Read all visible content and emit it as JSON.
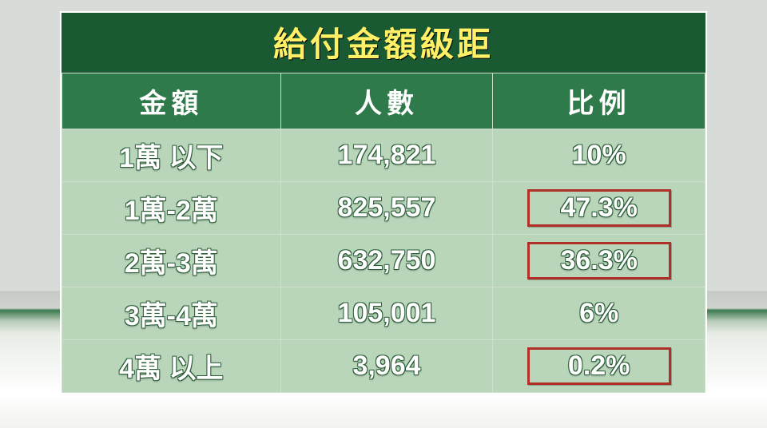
{
  "title": "給付金額級距",
  "table": {
    "columns": [
      "金額",
      "人數",
      "比例"
    ],
    "rows": [
      {
        "amount": "1萬 以下",
        "people": "174,821",
        "ratio": "10%",
        "highlight": false
      },
      {
        "amount": "1萬-2萬",
        "people": "825,557",
        "ratio": "47.3%",
        "highlight": true
      },
      {
        "amount": "2萬-3萬",
        "people": "632,750",
        "ratio": "36.3%",
        "highlight": true
      },
      {
        "amount": "3萬-4萬",
        "people": "105,001",
        "ratio": "6%",
        "highlight": false
      },
      {
        "amount": "4萬 以上",
        "people": "3,964",
        "ratio": "0.2%",
        "highlight": true
      }
    ],
    "highlight_border_color": "#b03028",
    "header_bg": "#2f7a4a",
    "header_fg": "#ffffff",
    "title_bg": "#1a5a33",
    "title_fg": "#fff066",
    "cell_bg": "#b9d6ba",
    "cell_fg": "#ffffff",
    "cell_outline": "#2a5d38",
    "border_color": "#cfe0cf",
    "col_widths_pct": [
      34,
      33,
      33
    ],
    "font_size_title": 42,
    "font_size_header": 34,
    "font_size_cell": 34
  }
}
